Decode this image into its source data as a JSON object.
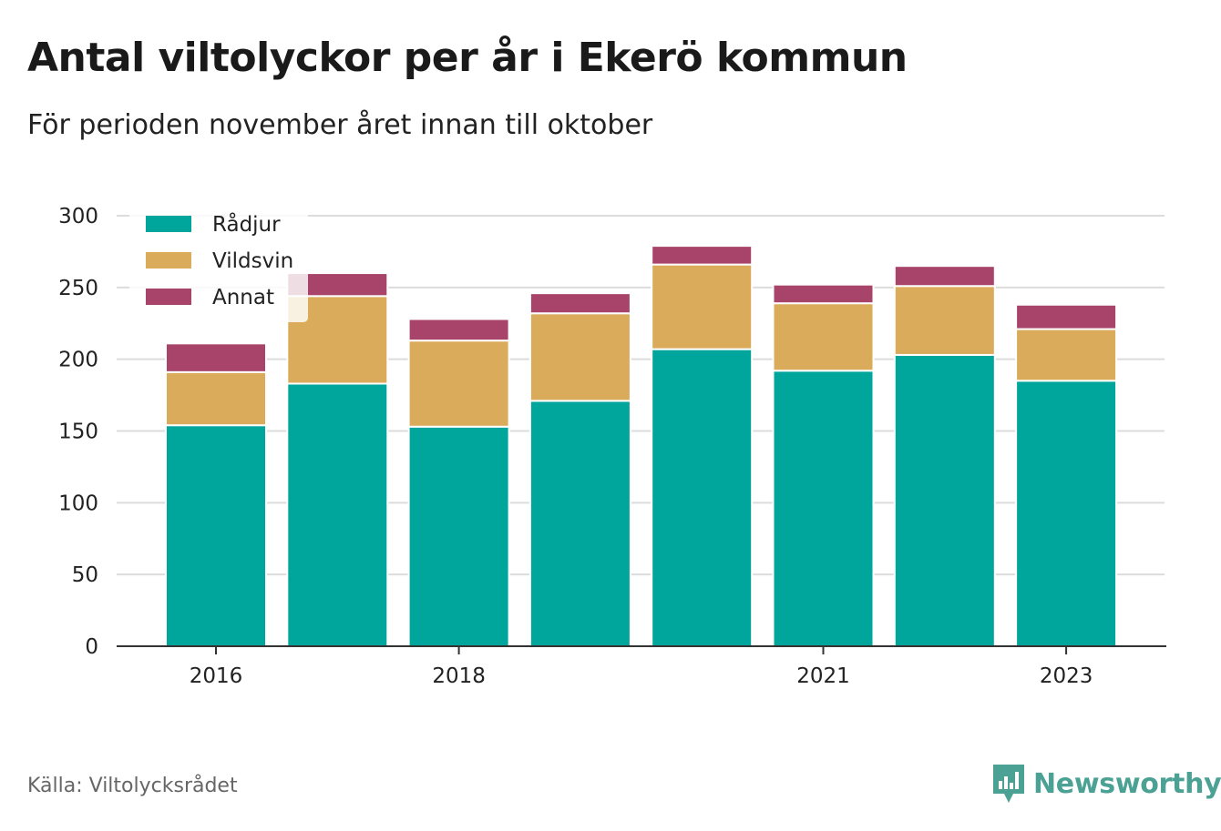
{
  "title": "Antal viltolyckor per år i Ekerö kommun",
  "subtitle": "För perioden november året innan till oktober",
  "source": "Källa: Viltolycksrådet",
  "brand": {
    "name": "Newsworthy",
    "color": "#4aa194"
  },
  "chart_data": {
    "type": "bar",
    "stacked": true,
    "x": [
      2016,
      2017,
      2018,
      2019,
      2020,
      2021,
      2022,
      2023
    ],
    "x_tick_labels": [
      {
        "value": 2016,
        "label": "2016"
      },
      {
        "value": 2018,
        "label": "2018"
      },
      {
        "value": 2021,
        "label": "2021"
      },
      {
        "value": 2023,
        "label": "2023"
      }
    ],
    "y_ticks": [
      0,
      50,
      100,
      150,
      200,
      250,
      300
    ],
    "ylim": [
      0,
      300
    ],
    "grid": true,
    "legend_position": "top-left",
    "series": [
      {
        "name": "Rådjur",
        "color": "#00a59b",
        "values": [
          154,
          183,
          153,
          171,
          207,
          192,
          203,
          185
        ]
      },
      {
        "name": "Vildsvin",
        "color": "#d9ab5a",
        "values": [
          37,
          61,
          60,
          61,
          59,
          47,
          48,
          36
        ]
      },
      {
        "name": "Annat",
        "color": "#a8436a",
        "values": [
          20,
          16,
          15,
          14,
          13,
          13,
          14,
          17
        ]
      }
    ]
  }
}
